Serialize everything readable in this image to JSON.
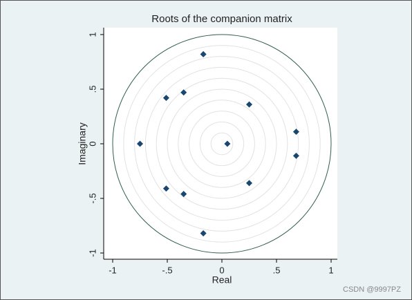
{
  "chart_data": {
    "type": "scatter",
    "title": "Roots of the companion matrix",
    "x_label": "Real",
    "y_label": "Imaginary",
    "x": [
      0.05,
      -0.75,
      0.68,
      0.68,
      0.25,
      0.25,
      -0.17,
      -0.17,
      -0.35,
      -0.35,
      -0.51,
      -0.51
    ],
    "y": [
      0,
      0,
      0.11,
      -0.11,
      0.36,
      -0.36,
      0.82,
      -0.82,
      0.47,
      -0.46,
      0.42,
      -0.41
    ],
    "color": "#1a476f",
    "xlim": [
      -1.05,
      1.05
    ],
    "ylim": [
      -1.05,
      1.05
    ],
    "xticks": [
      -1,
      {
        "value": -0.5,
        "label": "-.5"
      },
      0,
      {
        "value": 0.5,
        "label": ".5"
      },
      1
    ],
    "yticks": [
      -1,
      {
        "value": -0.5,
        "label": "-.5"
      },
      0,
      {
        "value": 0.5,
        "label": ".5"
      },
      1
    ],
    "grid_radii": [
      0.1,
      0.2,
      0.3,
      0.4,
      0.5,
      0.6,
      0.7,
      0.8,
      0.9
    ],
    "unit_circle": 1,
    "watermark": "CSDN @9997PZ"
  }
}
